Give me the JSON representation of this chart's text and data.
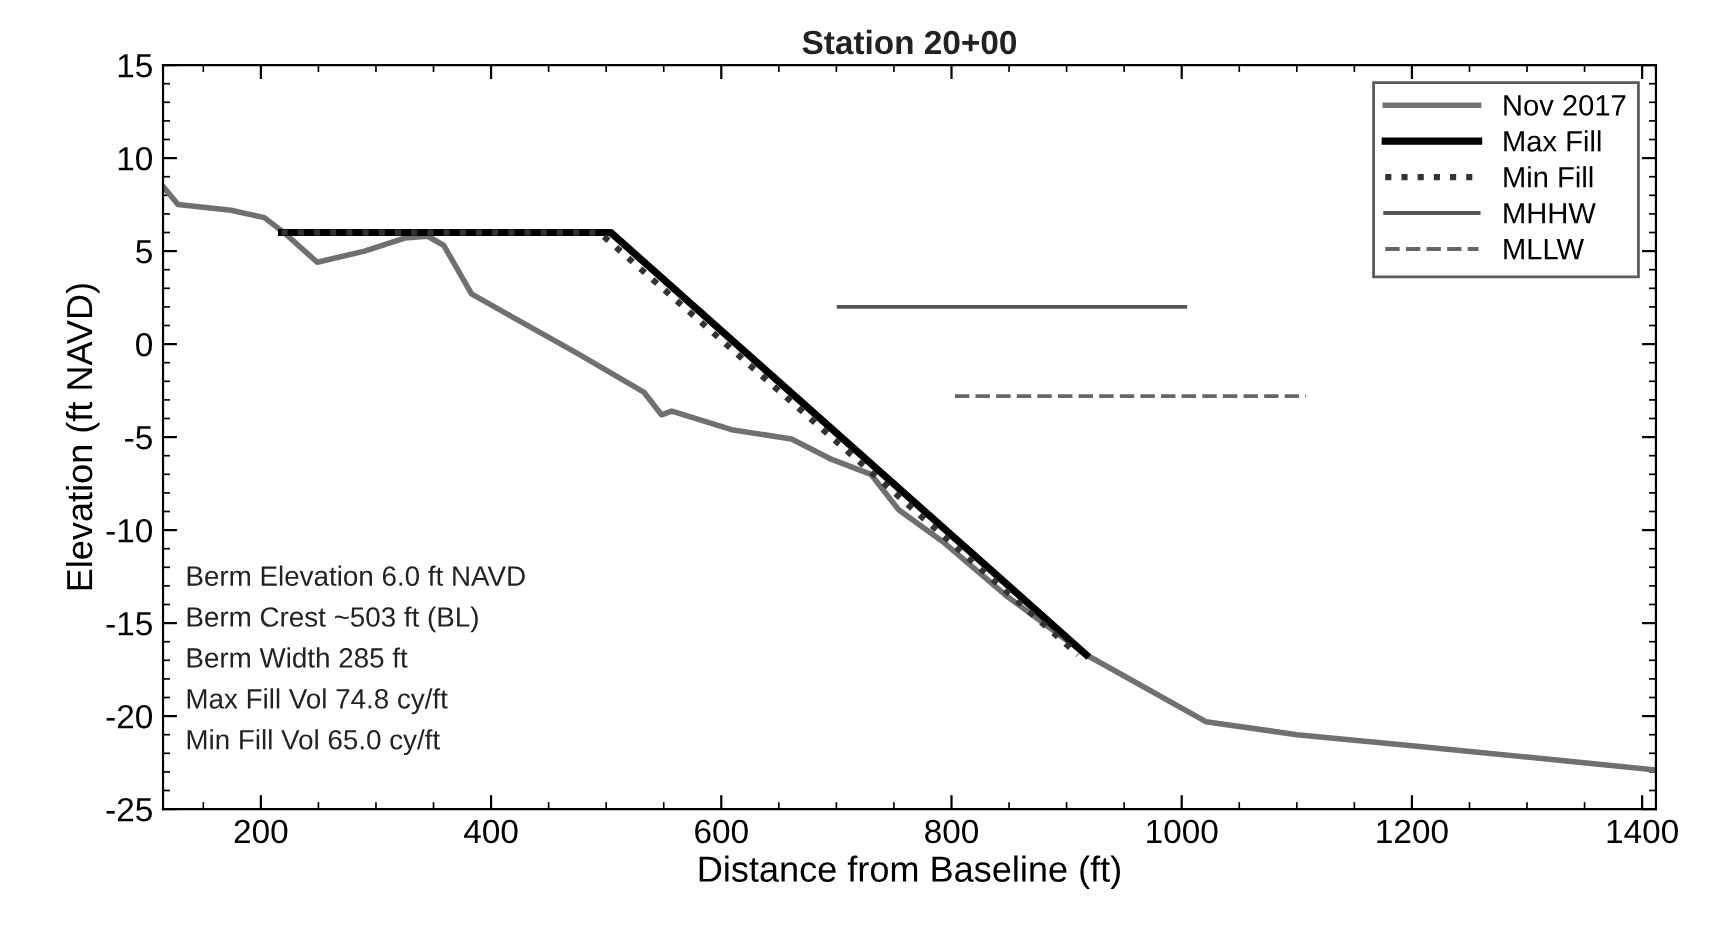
{
  "chart_data": {
    "type": "line",
    "title": "Station 20+00",
    "xlabel": "Distance from Baseline (ft)",
    "ylabel": "Elevation (ft NAVD)",
    "xlim": [
      115,
      1412
    ],
    "ylim": [
      -25,
      15
    ],
    "xticks": [
      200,
      400,
      600,
      800,
      1000,
      1200,
      1400
    ],
    "yticks": [
      -25,
      -20,
      -15,
      -10,
      -5,
      0,
      5,
      10,
      15
    ],
    "grid": false,
    "legend": "top right",
    "series": [
      {
        "name": "Nov 2017",
        "color": "#707070",
        "line_style": "solid",
        "x": [
          116,
          128,
          174,
          203,
          220,
          249,
          290,
          325,
          345,
          359,
          383,
          423,
          475,
          533,
          548,
          557,
          609,
          661,
          696,
          730,
          754,
          794,
          847,
          917,
          1021,
          1100,
          1200,
          1300,
          1412
        ],
        "values": [
          8.4,
          7.5,
          7.2,
          6.8,
          6.0,
          4.4,
          5.0,
          5.7,
          5.8,
          5.3,
          2.7,
          1.3,
          -0.5,
          -2.6,
          -3.8,
          -3.6,
          -4.6,
          -5.1,
          -6.2,
          -7.0,
          -8.9,
          -10.7,
          -13.5,
          -16.7,
          -20.3,
          -21.0,
          -21.6,
          -22.2,
          -22.9
        ]
      },
      {
        "name": "Max Fill",
        "color": "#000000",
        "line_style": "solid",
        "x": [
          218,
          504,
          917
        ],
        "values": [
          6.0,
          6.0,
          -16.7
        ]
      },
      {
        "name": "Min Fill",
        "color": "#333333",
        "line_style": "dotted",
        "x": [
          218,
          494,
          910
        ],
        "values": [
          6.0,
          6.0,
          -16.7
        ]
      },
      {
        "name": "MHHW",
        "color": "#555555",
        "line_style": "solid",
        "x": [
          702,
          1003
        ],
        "values": [
          2.0,
          2.0
        ]
      },
      {
        "name": "MLLW",
        "color": "#666666",
        "line_style": "dashed",
        "x": [
          803,
          1108
        ],
        "values": [
          -2.8,
          -2.8
        ]
      }
    ],
    "annotations": [
      "Berm Elevation 6.0 ft NAVD",
      "Berm Crest ~503 ft (BL)",
      "Berm Width 285 ft",
      "Max Fill Vol 74.8 cy/ft",
      "Min Fill Vol 65.0 cy/ft"
    ]
  }
}
